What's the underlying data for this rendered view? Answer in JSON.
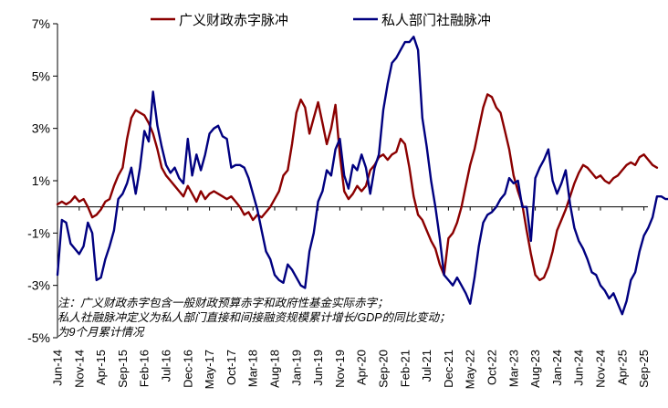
{
  "chart_data": {
    "type": "line",
    "ylim": [
      -5,
      7
    ],
    "yticks": [
      7,
      5,
      3,
      1,
      -1,
      -3,
      -5
    ],
    "ytick_labels": [
      "7%",
      "5%",
      "3%",
      "1%",
      "-1%",
      "-3%",
      "-5%"
    ],
    "xlabels": [
      "Jun-14",
      "Nov-14",
      "Apr-15",
      "Sep-15",
      "Feb-16",
      "Jul-16",
      "Dec-16",
      "May-17",
      "Oct-17",
      "Mar-18",
      "Aug-18",
      "Jan-19",
      "Jun-19",
      "Nov-19",
      "Apr-20",
      "Sep-20",
      "Feb-21",
      "Jul-21",
      "Dec-21",
      "May-22",
      "Oct-22",
      "Mar-23",
      "Aug-23",
      "Jan-24",
      "Jun-24",
      "Nov-24",
      "Apr-25",
      "Sep-25"
    ],
    "x_start": "Jun-14",
    "x_end": "Oct-25",
    "series": [
      {
        "name": "广义财政赤字脉冲",
        "color": "#8B0000",
        "values": [
          0.1,
          0.2,
          0.1,
          0.2,
          0.4,
          0.2,
          0.3,
          0.0,
          -0.4,
          -0.3,
          -0.1,
          0.2,
          0.3,
          0.8,
          1.2,
          1.5,
          2.6,
          3.4,
          3.7,
          3.6,
          3.5,
          3.2,
          2.8,
          2.2,
          1.5,
          1.2,
          1.0,
          0.8,
          0.6,
          0.4,
          0.8,
          0.5,
          0.2,
          0.6,
          0.3,
          0.5,
          0.6,
          0.5,
          0.4,
          0.3,
          0.4,
          0.2,
          0.0,
          -0.3,
          -0.2,
          -0.5,
          -0.3,
          -0.4,
          -0.2,
          0.0,
          0.3,
          0.6,
          1.2,
          1.4,
          2.4,
          3.6,
          4.1,
          3.8,
          2.8,
          3.4,
          4.0,
          3.2,
          2.4,
          3.0,
          3.9,
          2.0,
          0.6,
          0.3,
          0.5,
          0.8,
          0.6,
          0.8,
          1.4,
          1.6,
          1.9,
          2.0,
          1.8,
          2.0,
          2.1,
          2.6,
          2.4,
          1.5,
          0.4,
          -0.3,
          -0.5,
          -0.9,
          -1.3,
          -1.6,
          -2.2,
          -2.6,
          -1.2,
          -1.0,
          -0.6,
          0.0,
          0.8,
          1.6,
          2.2,
          3.0,
          3.8,
          4.3,
          4.2,
          3.8,
          3.6,
          2.9,
          2.2,
          1.2,
          0.6,
          0.1,
          -0.9,
          -1.8,
          -2.6,
          -2.8,
          -2.7,
          -2.3,
          -1.7,
          -0.9,
          -0.5,
          -0.1,
          0.4,
          0.9,
          1.3,
          1.6,
          1.5,
          1.3,
          1.1,
          1.2,
          1.0,
          0.9,
          1.1,
          1.2,
          1.4,
          1.6,
          1.7,
          1.6,
          1.9,
          2.0,
          1.8,
          1.6,
          1.5
        ]
      },
      {
        "name": "私人部门社融脉冲",
        "color": "#000080",
        "values": [
          -2.6,
          -0.5,
          -0.6,
          -1.4,
          -1.6,
          -1.8,
          -1.5,
          -0.6,
          -1.0,
          -2.8,
          -2.7,
          -2.0,
          -1.5,
          -0.9,
          0.3,
          0.5,
          0.9,
          1.5,
          0.5,
          1.5,
          2.9,
          2.5,
          4.4,
          3.1,
          2.3,
          1.6,
          1.3,
          1.5,
          1.1,
          0.9,
          2.6,
          1.2,
          2.0,
          1.4,
          2.0,
          2.8,
          3.0,
          3.1,
          2.7,
          2.6,
          1.5,
          1.6,
          1.6,
          1.5,
          1.1,
          0.5,
          -0.1,
          -0.9,
          -1.7,
          -2.0,
          -2.6,
          -2.8,
          -2.9,
          -2.2,
          -2.4,
          -2.7,
          -3.0,
          -3.1,
          -1.7,
          -1.0,
          0.2,
          0.6,
          1.4,
          1.2,
          2.2,
          2.6,
          1.2,
          0.7,
          1.6,
          1.4,
          2.0,
          1.5,
          0.5,
          1.5,
          2.0,
          3.7,
          4.7,
          5.5,
          5.7,
          6.0,
          6.3,
          6.3,
          6.5,
          6.0,
          3.4,
          2.3,
          1.0,
          0.0,
          -1.2,
          -2.6,
          -2.8,
          -3.0,
          -2.7,
          -3.0,
          -3.3,
          -3.7,
          -2.7,
          -1.5,
          -0.6,
          -0.3,
          -0.2,
          0.0,
          0.3,
          0.5,
          1.1,
          0.9,
          1.0,
          0.0,
          0.0,
          -1.3,
          1.1,
          1.5,
          1.8,
          2.2,
          1.0,
          0.5,
          0.9,
          1.4,
          0.1,
          -0.8,
          -1.3,
          -1.6,
          -2.0,
          -2.5,
          -2.6,
          -3.0,
          -3.2,
          -3.5,
          -3.3,
          -3.7,
          -4.1,
          -3.6,
          -2.8,
          -2.5,
          -1.7,
          -1.1,
          -0.8,
          -0.4,
          0.4,
          0.4,
          0.3,
          0.3
        ]
      }
    ],
    "note_lines": [
      "注：广义财政赤字包含一般财政预算赤字和政府性基金实际赤字；",
      "私人社融脉冲定义为私人部门直接和间接融资规模累计增长/GDP的同比变动；",
      "为9个月累计情况"
    ]
  }
}
